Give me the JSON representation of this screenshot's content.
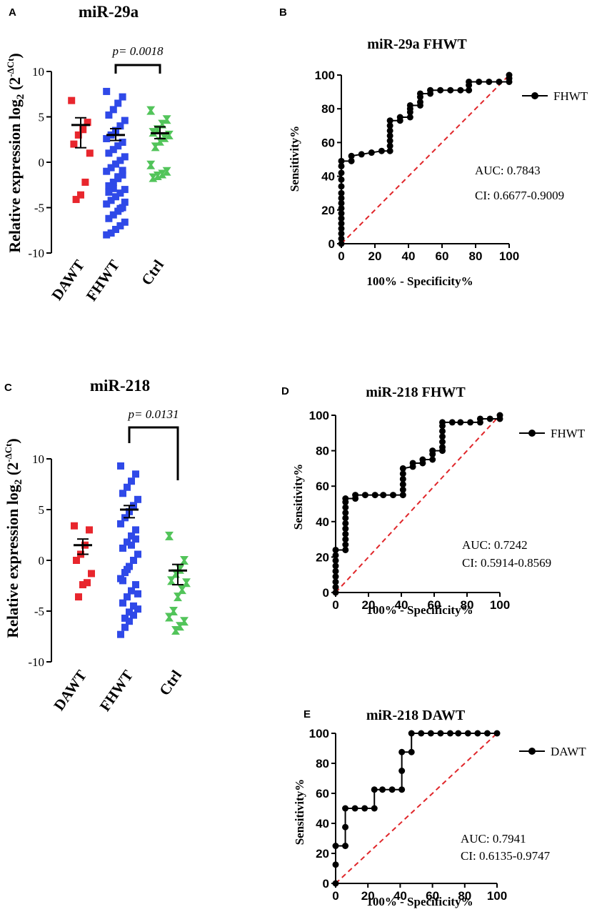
{
  "colors": {
    "DAWT": "#e8262d",
    "FHWT": "#2f49e8",
    "Ctrl": "#52c45a",
    "reference": "#e0262a",
    "roc": "#000000"
  },
  "chart_data": [
    {
      "id": "A",
      "panel_label": "A",
      "type": "scatter",
      "title": "miR-29a",
      "ylabel": "Relative expression log₂ (2⁻ΔCt)",
      "ylim": [
        -10,
        10
      ],
      "yticks": [
        "10",
        "5",
        "0",
        "-5",
        "-10"
      ],
      "categories": [
        "DAWT",
        "FHWT",
        "Ctrl"
      ],
      "significance": {
        "from": "FHWT",
        "to": "Ctrl",
        "label": "p= 0.0018"
      },
      "series": [
        {
          "name": "DAWT",
          "mean": 4.1,
          "sem_low": 1.6,
          "sem_high": 4.9,
          "points": [
            6.8,
            4.4,
            3.6,
            3.0,
            2.0,
            1.0,
            -2.2,
            -3.6,
            -4.1
          ]
        },
        {
          "name": "FHWT",
          "mean": 3.0,
          "sem_low": 2.4,
          "sem_high": 3.7,
          "points": [
            7.8,
            7.2,
            6.5,
            5.8,
            5.2,
            4.6,
            4.0,
            3.5,
            3.0,
            2.6,
            2.2,
            1.8,
            1.4,
            1.0,
            0.6,
            0.2,
            -0.2,
            -0.6,
            -1.0,
            -1.4,
            -1.8,
            -2.2,
            -2.6,
            -3.0,
            -3.4,
            -3.8,
            -4.2,
            -4.6,
            -5.0,
            -5.4,
            -5.8,
            -6.2,
            -6.6,
            -7.0,
            -7.4,
            -7.8,
            -8.0,
            -0.9,
            -1.6,
            -2.9,
            -3.3,
            -4.4,
            -5.1
          ]
        },
        {
          "name": "Ctrl",
          "mean": 3.2,
          "sem_low": 2.6,
          "sem_high": 3.9,
          "points": [
            5.7,
            4.7,
            4.2,
            3.6,
            3.3,
            3.0,
            2.7,
            2.3,
            1.7,
            -0.3,
            -1.0,
            -1.3,
            -1.5,
            -1.7
          ]
        }
      ]
    },
    {
      "id": "B",
      "panel_label": "B",
      "type": "line",
      "title": "miR-29a FHWT",
      "xlabel": "100% - Specificity%",
      "ylabel": "Sensitivity%",
      "xlim": [
        0,
        100
      ],
      "ylim": [
        0,
        100
      ],
      "ticks": [
        "0",
        "20",
        "40",
        "60",
        "80",
        "100"
      ],
      "legend": "FHWT",
      "auc": "AUC: 0.7843",
      "ci": "CI: 0.6677-0.9009",
      "roc": [
        [
          0,
          0
        ],
        [
          0,
          3
        ],
        [
          0,
          6
        ],
        [
          0,
          9
        ],
        [
          0,
          12
        ],
        [
          0,
          15
        ],
        [
          0,
          18
        ],
        [
          0,
          21
        ],
        [
          0,
          24
        ],
        [
          0,
          27
        ],
        [
          0,
          30
        ],
        [
          0,
          34
        ],
        [
          0,
          38
        ],
        [
          0,
          42
        ],
        [
          0,
          46
        ],
        [
          0,
          49
        ],
        [
          6,
          49
        ],
        [
          6,
          52
        ],
        [
          12,
          53
        ],
        [
          18,
          54
        ],
        [
          24,
          55
        ],
        [
          29,
          55
        ],
        [
          29,
          58
        ],
        [
          29,
          61
        ],
        [
          29,
          64
        ],
        [
          29,
          67
        ],
        [
          29,
          70
        ],
        [
          29,
          73
        ],
        [
          35,
          73
        ],
        [
          35,
          75
        ],
        [
          41,
          75
        ],
        [
          41,
          78
        ],
        [
          41,
          80
        ],
        [
          41,
          82
        ],
        [
          47,
          82
        ],
        [
          47,
          84
        ],
        [
          47,
          87
        ],
        [
          47,
          89
        ],
        [
          53,
          89
        ],
        [
          53,
          91
        ],
        [
          59,
          91
        ],
        [
          65,
          91
        ],
        [
          71,
          91
        ],
        [
          76,
          91
        ],
        [
          76,
          94
        ],
        [
          76,
          96
        ],
        [
          82,
          96
        ],
        [
          88,
          96
        ],
        [
          94,
          96
        ],
        [
          100,
          96
        ],
        [
          100,
          98
        ],
        [
          100,
          100
        ]
      ]
    },
    {
      "id": "C",
      "panel_label": "C",
      "type": "scatter",
      "title": "miR-218",
      "ylabel": "Relative expression log₂ (2⁻ΔCt)",
      "ylim": [
        -10,
        10
      ],
      "yticks": [
        "10",
        "5",
        "0",
        "-5",
        "-10"
      ],
      "categories": [
        "DAWT",
        "FHWT",
        "Ctrl"
      ],
      "significance": {
        "from": "FHWT",
        "to": "Ctrl",
        "label": "p= 0.0131"
      },
      "series": [
        {
          "name": "DAWT",
          "mean": 1.5,
          "sem_low": 0.6,
          "sem_high": 2.1,
          "points": [
            3.4,
            3.0,
            1.5,
            0.6,
            0.0,
            -1.3,
            -2.2,
            -2.4,
            -3.6
          ]
        },
        {
          "name": "FHWT",
          "mean": 5.0,
          "sem_low": 4.2,
          "sem_high": 5.4,
          "points": [
            9.3,
            8.5,
            7.8,
            7.2,
            6.6,
            6.0,
            5.4,
            4.8,
            4.2,
            3.6,
            3.0,
            2.4,
            1.8,
            1.2,
            0.6,
            0.0,
            -0.6,
            -1.2,
            -1.8,
            -2.4,
            -3.0,
            -3.6,
            -4.2,
            -4.8,
            -5.4,
            -6.0,
            -6.6,
            -7.3,
            2.1,
            1.5,
            -0.9,
            -2.0,
            -3.3,
            -4.5,
            -5.1,
            -5.7
          ]
        },
        {
          "name": "Ctrl",
          "mean": -1.0,
          "sem_low": -2.4,
          "sem_high": -0.4,
          "points": [
            2.4,
            0.0,
            -0.9,
            -1.3,
            -2.0,
            -2.2,
            -2.9,
            -3.6,
            -5.0,
            -5.6,
            -6.0,
            -6.5,
            -6.9
          ]
        }
      ]
    },
    {
      "id": "D",
      "panel_label": "D",
      "type": "line",
      "title": "miR-218 FHWT",
      "xlabel": "100% - Specificity%",
      "ylabel": "Sensitivity%",
      "xlim": [
        0,
        100
      ],
      "ylim": [
        0,
        100
      ],
      "ticks": [
        "0",
        "20",
        "40",
        "60",
        "80",
        "100"
      ],
      "legend": "FHWT",
      "auc": "AUC: 0.7242",
      "ci": "CI: 0.5914-0.8569",
      "roc": [
        [
          0,
          0
        ],
        [
          0,
          3
        ],
        [
          0,
          6
        ],
        [
          0,
          9
        ],
        [
          0,
          12
        ],
        [
          0,
          15
        ],
        [
          0,
          18
        ],
        [
          0,
          21
        ],
        [
          0,
          24
        ],
        [
          6,
          24
        ],
        [
          6,
          27
        ],
        [
          6,
          30
        ],
        [
          6,
          33
        ],
        [
          6,
          36
        ],
        [
          6,
          39
        ],
        [
          6,
          42
        ],
        [
          6,
          45
        ],
        [
          6,
          48
        ],
        [
          6,
          51
        ],
        [
          6,
          53
        ],
        [
          12,
          53
        ],
        [
          12,
          55
        ],
        [
          18,
          55
        ],
        [
          24,
          55
        ],
        [
          29,
          55
        ],
        [
          35,
          55
        ],
        [
          41,
          55
        ],
        [
          41,
          58
        ],
        [
          41,
          61
        ],
        [
          41,
          64
        ],
        [
          41,
          67
        ],
        [
          41,
          70
        ],
        [
          47,
          71
        ],
        [
          47,
          73
        ],
        [
          53,
          73
        ],
        [
          53,
          75
        ],
        [
          59,
          75
        ],
        [
          59,
          78
        ],
        [
          59,
          80
        ],
        [
          65,
          80
        ],
        [
          65,
          82
        ],
        [
          65,
          85
        ],
        [
          65,
          88
        ],
        [
          65,
          91
        ],
        [
          65,
          94
        ],
        [
          65,
          96
        ],
        [
          71,
          96
        ],
        [
          76,
          96
        ],
        [
          82,
          96
        ],
        [
          88,
          96
        ],
        [
          88,
          98
        ],
        [
          94,
          98
        ],
        [
          100,
          98
        ],
        [
          100,
          100
        ]
      ]
    },
    {
      "id": "E",
      "panel_label": "E",
      "type": "line",
      "title": "miR-218 DAWT",
      "xlabel": "100% - Specificity%",
      "ylabel": "Sensitivity%",
      "xlim": [
        0,
        100
      ],
      "ylim": [
        0,
        100
      ],
      "ticks": [
        "0",
        "20",
        "40",
        "60",
        "80",
        "100"
      ],
      "legend": "DAWT",
      "auc": "AUC: 0.7941",
      "ci": "CI: 0.6135-0.9747",
      "roc": [
        [
          0,
          0
        ],
        [
          0,
          12.5
        ],
        [
          0,
          25
        ],
        [
          6,
          25
        ],
        [
          6,
          37.5
        ],
        [
          6,
          50
        ],
        [
          12,
          50
        ],
        [
          18,
          50
        ],
        [
          24,
          50
        ],
        [
          24,
          62.5
        ],
        [
          29,
          62.5
        ],
        [
          35,
          62.5
        ],
        [
          41,
          62.5
        ],
        [
          41,
          75
        ],
        [
          41,
          87.5
        ],
        [
          47,
          87.5
        ],
        [
          47,
          100
        ],
        [
          53,
          100
        ],
        [
          59,
          100
        ],
        [
          65,
          100
        ],
        [
          71,
          100
        ],
        [
          76,
          100
        ],
        [
          82,
          100
        ],
        [
          88,
          100
        ],
        [
          94,
          100
        ],
        [
          100,
          100
        ]
      ]
    }
  ]
}
